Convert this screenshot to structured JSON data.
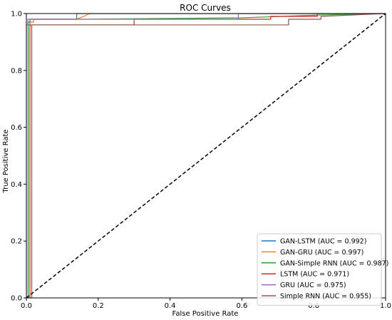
{
  "chart_data": {
    "type": "line",
    "title": "ROC Curves",
    "xlabel": "False Positive Rate",
    "ylabel": "True Positive Rate",
    "xlim": [
      0.0,
      1.0
    ],
    "ylim": [
      0.0,
      1.0
    ],
    "x_ticks": [
      "0.0",
      "0.2",
      "0.4",
      "0.6",
      "0.8",
      "1.0"
    ],
    "y_ticks": [
      "0.0",
      "0.2",
      "0.4",
      "0.6",
      "0.8",
      "1.0"
    ],
    "grid": false,
    "legend_position": "lower-right",
    "series": [
      {
        "name": "GAN-LSTM (AUC = 0.992)",
        "color": "#1f77b4",
        "x": [
          0.0,
          0.005,
          0.005,
          0.01,
          0.01,
          0.14,
          0.14,
          0.165,
          0.165,
          1.0
        ],
        "y": [
          0.0,
          0.0,
          0.96,
          0.96,
          0.98,
          0.98,
          1.0,
          1.0,
          1.0,
          1.0
        ]
      },
      {
        "name": "GAN-GRU (AUC = 0.997)",
        "color": "#ff7f0e",
        "x": [
          0.0,
          0.005,
          0.005,
          0.02,
          0.02,
          0.14,
          0.16,
          0.175,
          1.0
        ],
        "y": [
          0.0,
          0.0,
          0.97,
          0.97,
          0.98,
          0.98,
          0.99,
          1.0,
          1.0
        ]
      },
      {
        "name": "GAN-Simple RNN (AUC = 0.987)",
        "color": "#2ca02c",
        "x": [
          0.0,
          0.005,
          0.005,
          0.01,
          0.01,
          0.15,
          0.6,
          0.82,
          1.0
        ],
        "y": [
          0.0,
          0.0,
          0.97,
          0.97,
          0.98,
          0.98,
          0.985,
          0.995,
          1.0
        ]
      },
      {
        "name": "LSTM (AUC = 0.971)",
        "color": "#d62728",
        "x": [
          0.0,
          0.01,
          0.01,
          0.3,
          0.3,
          0.68,
          0.68,
          0.81,
          0.81,
          1.0
        ],
        "y": [
          0.0,
          0.0,
          0.96,
          0.96,
          0.98,
          0.98,
          0.99,
          0.99,
          1.0,
          1.0
        ]
      },
      {
        "name": "GRU (AUC = 0.975)",
        "color": "#9467bd",
        "x": [
          0.0,
          0.0,
          0.004,
          0.004,
          0.45,
          0.45,
          0.59,
          0.59,
          1.0
        ],
        "y": [
          0.0,
          0.96,
          0.96,
          0.98,
          0.98,
          0.98,
          0.98,
          1.0,
          1.0
        ]
      },
      {
        "name": "Simple RNN (AUC = 0.955)",
        "color": "#8c564b",
        "x": [
          0.0,
          0.015,
          0.015,
          0.73,
          0.73,
          0.82,
          0.82,
          1.0
        ],
        "y": [
          0.0,
          0.0,
          0.96,
          0.96,
          0.98,
          0.98,
          0.99,
          1.0
        ]
      }
    ],
    "reference_line": {
      "x": [
        0.0,
        1.0
      ],
      "y": [
        0.0,
        1.0
      ],
      "color": "#000000",
      "style": "dashed"
    }
  }
}
